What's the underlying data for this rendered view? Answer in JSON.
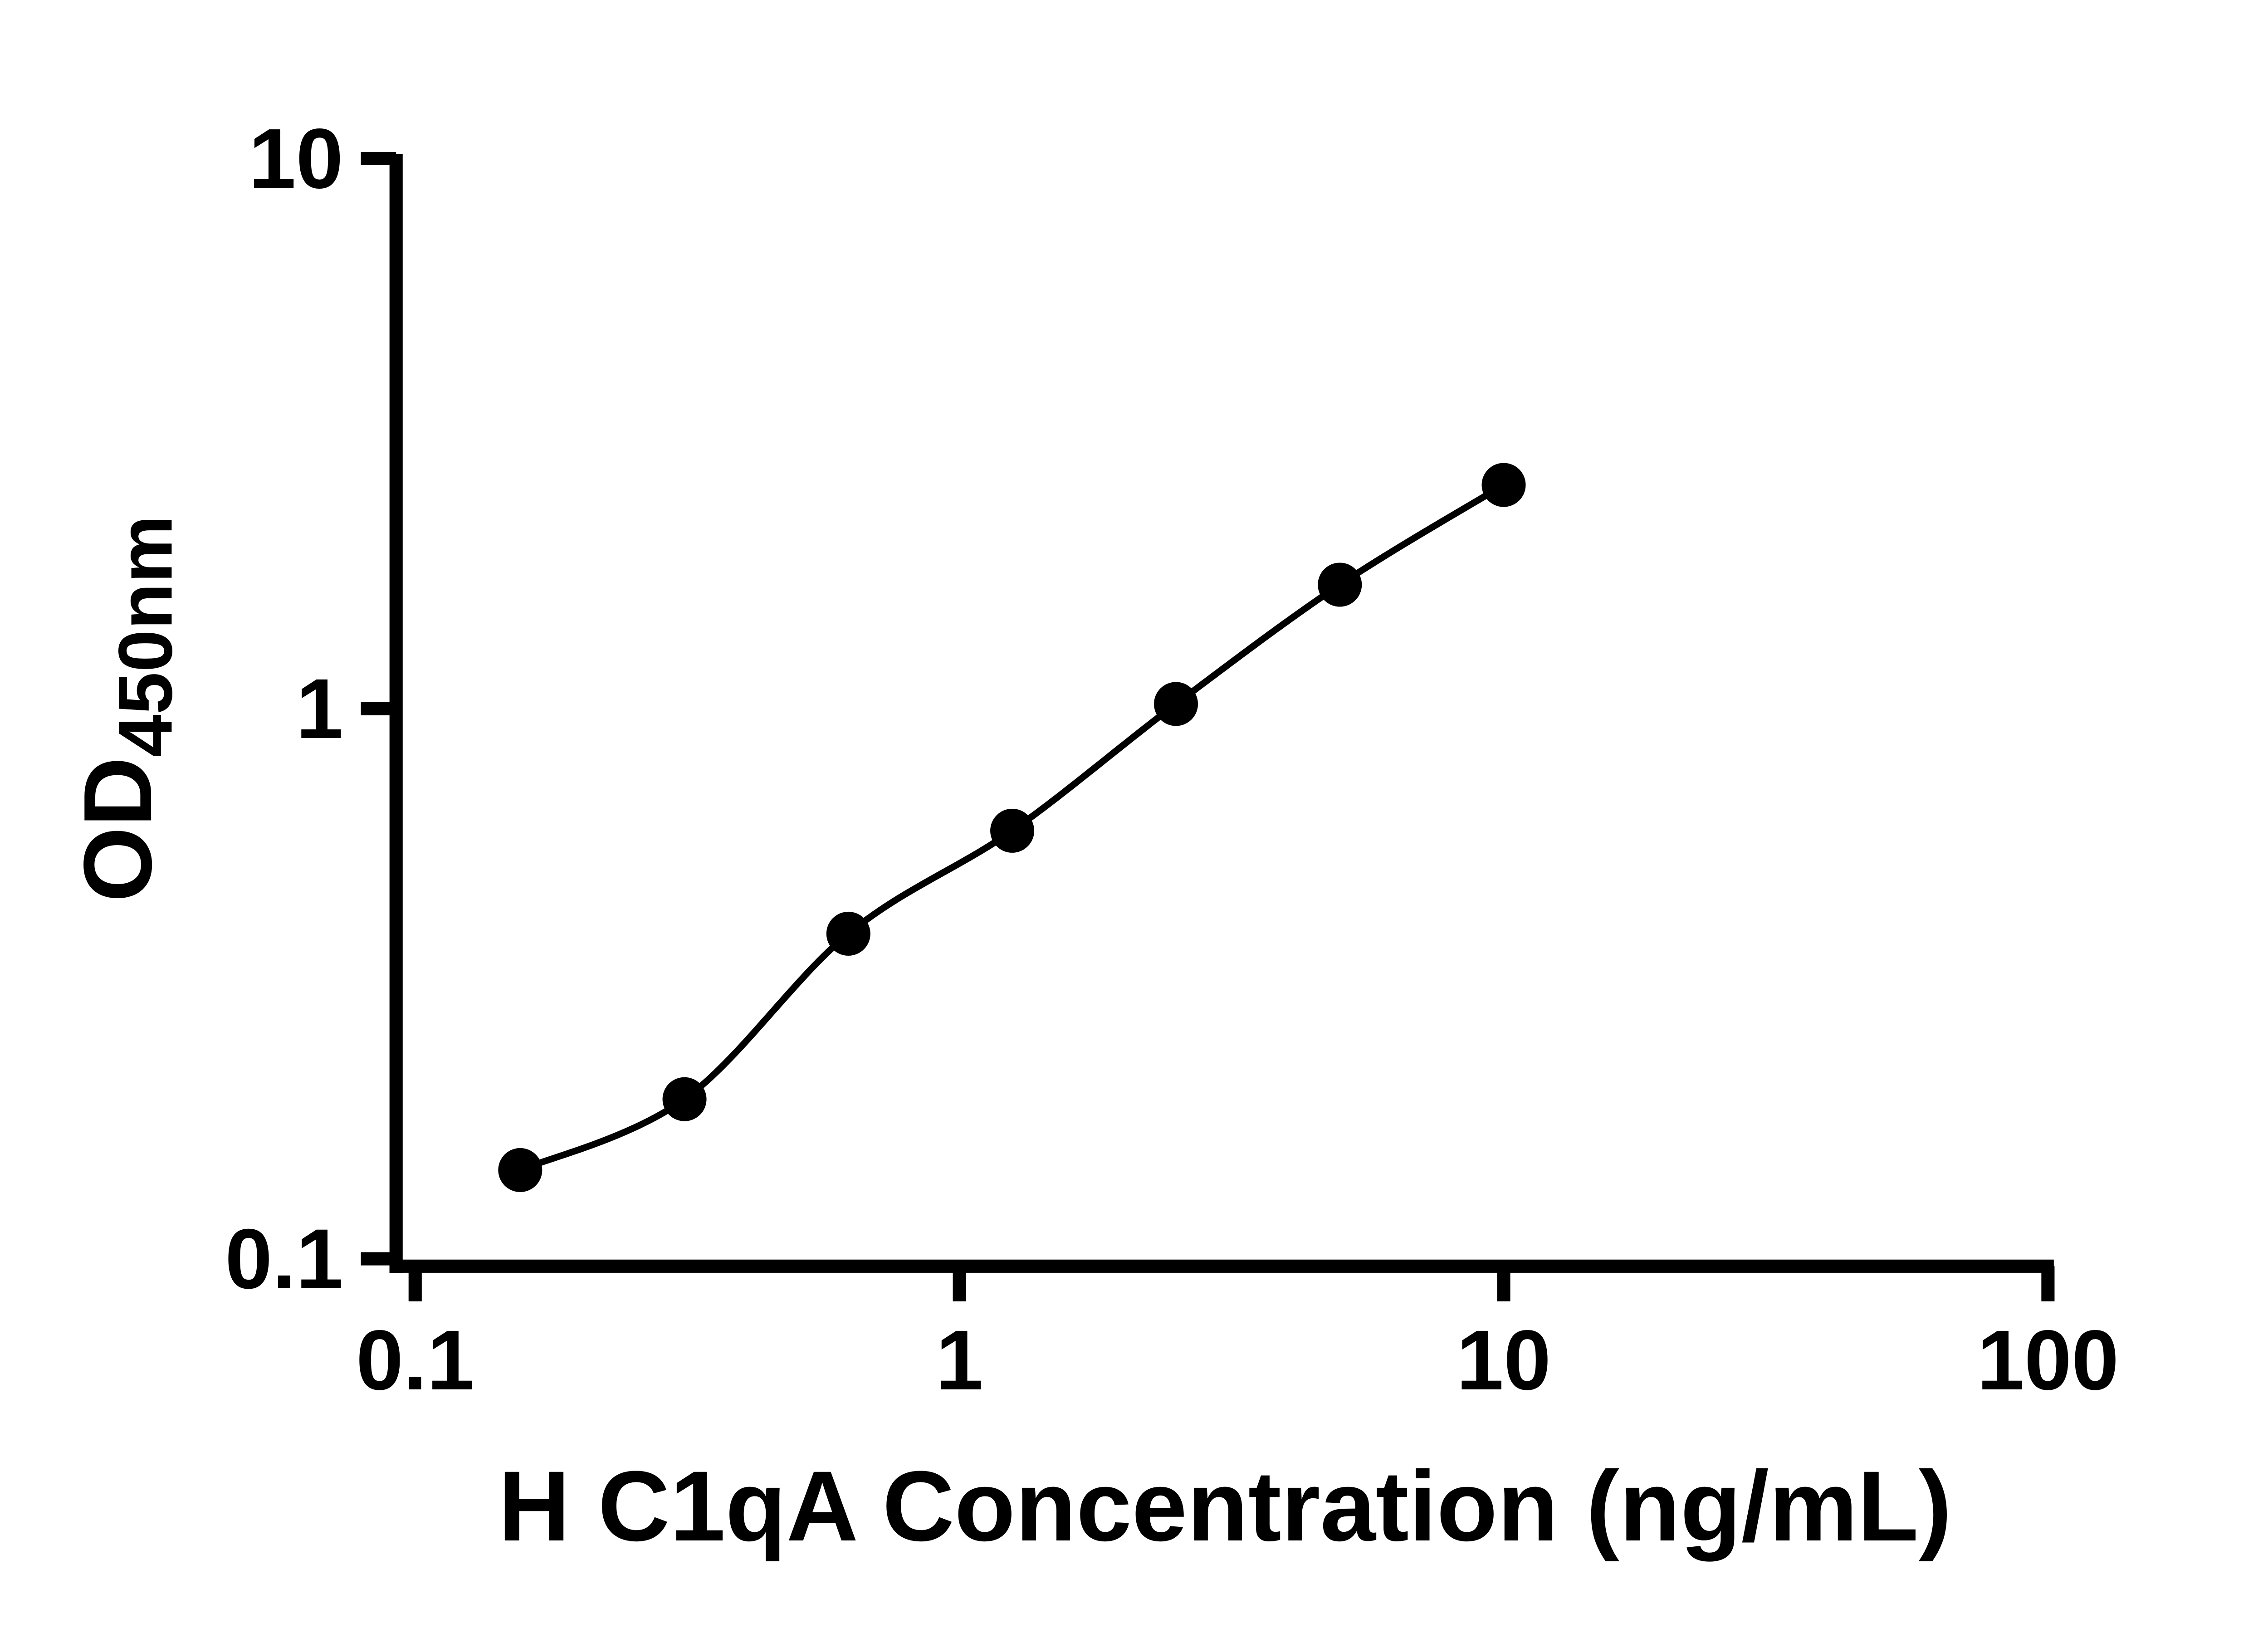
{
  "chart_data": {
    "type": "scatter",
    "title": "",
    "xlabel": "H C1qA Concentration (ng/mL)",
    "ylabel_main": "OD",
    "ylabel_sub": "450nm",
    "x_scale": "log",
    "y_scale": "log",
    "xlim": [
      0.1,
      100
    ],
    "ylim": [
      0.1,
      10
    ],
    "grid": false,
    "legend": "none",
    "x_ticks": [
      {
        "value": 0.1,
        "label": "0.1"
      },
      {
        "value": 1,
        "label": "1"
      },
      {
        "value": 10,
        "label": "10"
      },
      {
        "value": 100,
        "label": "100"
      }
    ],
    "y_ticks": [
      {
        "value": 0.1,
        "label": "0.1"
      },
      {
        "value": 1,
        "label": "1"
      },
      {
        "value": 10,
        "label": "10"
      }
    ],
    "points": [
      {
        "x": 0.156,
        "y": 0.145
      },
      {
        "x": 0.3125,
        "y": 0.195
      },
      {
        "x": 0.625,
        "y": 0.39
      },
      {
        "x": 1.25,
        "y": 0.6
      },
      {
        "x": 2.5,
        "y": 1.02
      },
      {
        "x": 5,
        "y": 1.68
      },
      {
        "x": 10,
        "y": 2.55
      }
    ],
    "marker_color": "#000000",
    "line_color": "#000000",
    "axis_color": "#000000"
  }
}
